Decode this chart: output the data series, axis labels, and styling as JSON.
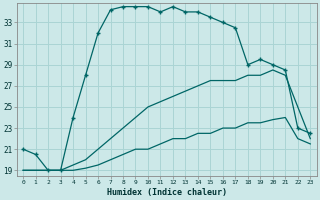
{
  "xlabel": "Humidex (Indice chaleur)",
  "bg_color": "#cce8e8",
  "grid_color": "#aad4d4",
  "line_color": "#006666",
  "hours": [
    0,
    1,
    2,
    3,
    4,
    5,
    6,
    7,
    8,
    9,
    10,
    11,
    12,
    13,
    14,
    15,
    16,
    17,
    18,
    19,
    20,
    21,
    22,
    23
  ],
  "y_max": [
    21.0,
    20.5,
    19.0,
    19.0,
    24.0,
    28.0,
    32.0,
    34.2,
    34.5,
    34.5,
    34.5,
    34.0,
    34.5,
    34.0,
    34.0,
    33.5,
    33.0,
    32.5,
    29.0,
    29.5,
    29.0,
    28.5,
    23.0,
    22.5
  ],
  "y_mean": [
    19.0,
    19.0,
    19.0,
    19.0,
    19.5,
    20.0,
    21.0,
    22.0,
    23.0,
    24.0,
    25.0,
    25.5,
    26.0,
    26.5,
    27.0,
    27.5,
    27.5,
    27.5,
    28.0,
    28.0,
    28.5,
    28.0,
    25.0,
    22.0
  ],
  "y_min": [
    19.0,
    19.0,
    19.0,
    19.0,
    19.0,
    19.2,
    19.5,
    20.0,
    20.5,
    21.0,
    21.0,
    21.5,
    22.0,
    22.0,
    22.5,
    22.5,
    23.0,
    23.0,
    23.5,
    23.5,
    23.8,
    24.0,
    22.0,
    21.5
  ],
  "ylim": [
    18.5,
    34.8
  ],
  "yticks": [
    19,
    21,
    23,
    25,
    27,
    29,
    31,
    33
  ],
  "xticks": [
    0,
    1,
    2,
    3,
    4,
    5,
    6,
    7,
    8,
    9,
    10,
    11,
    12,
    13,
    14,
    15,
    16,
    17,
    18,
    19,
    20,
    21,
    22,
    23
  ]
}
